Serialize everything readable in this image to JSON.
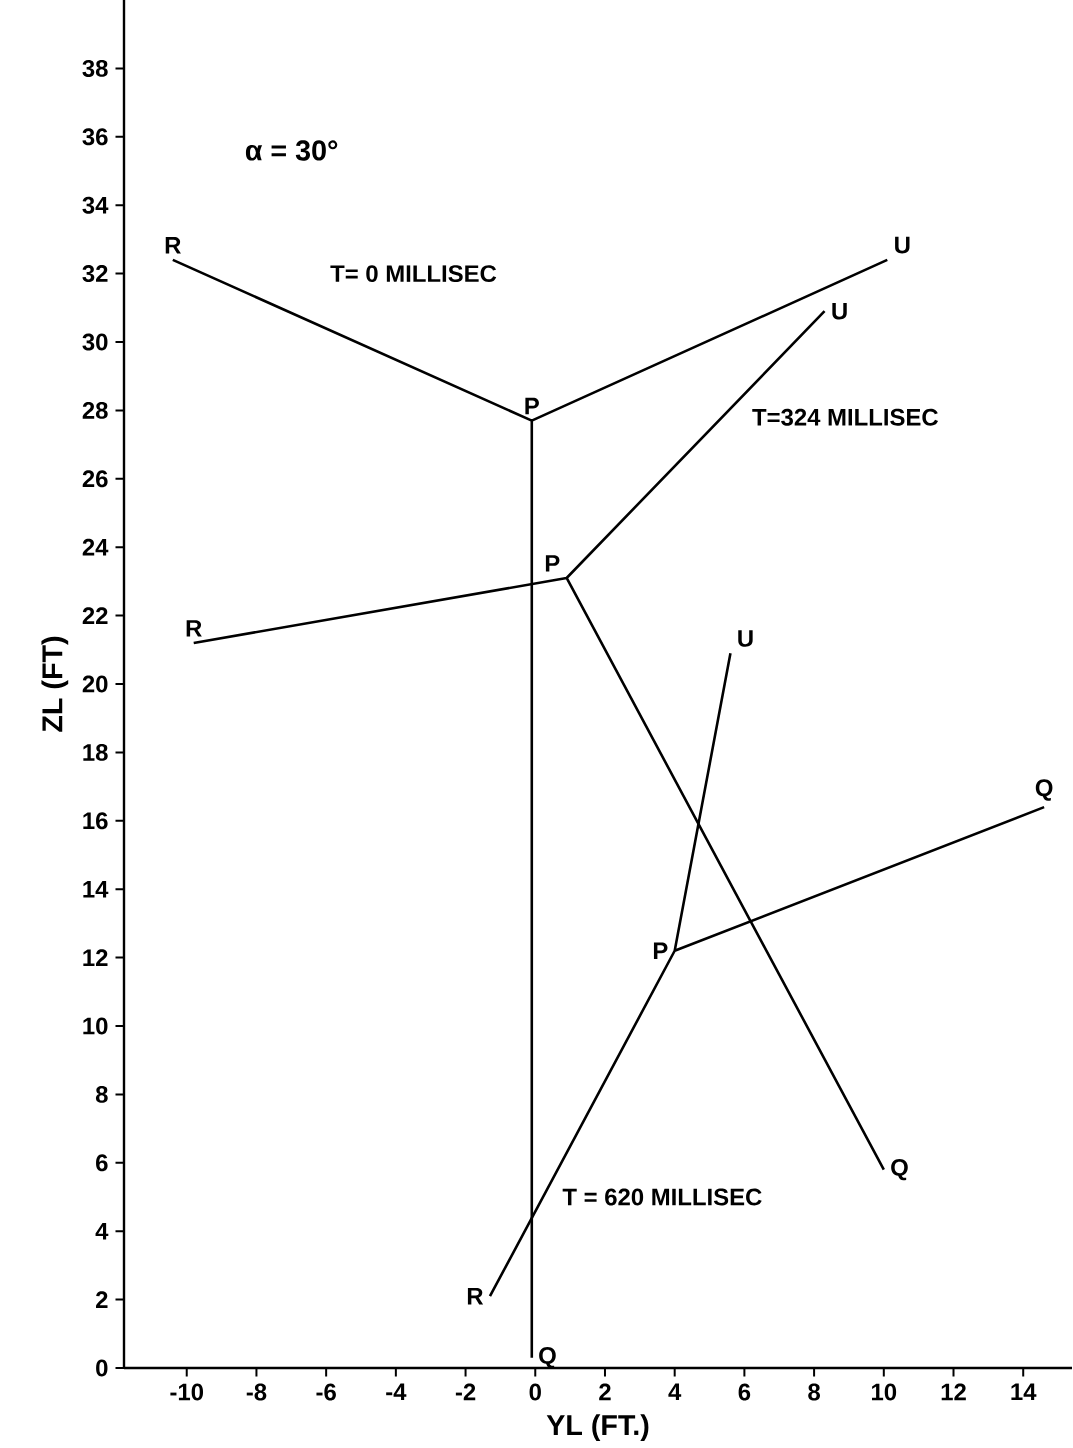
{
  "chart_data": {
    "type": "line",
    "xlabel": "YL (FT.)",
    "ylabel": "ZL (FT)",
    "xlim": [
      -11.8,
      15.4
    ],
    "ylim": [
      0,
      40
    ],
    "xticks": [
      -10,
      -8,
      -6,
      -4,
      -2,
      0,
      2,
      4,
      6,
      8,
      10,
      12,
      14
    ],
    "yticks": [
      0,
      2,
      4,
      6,
      8,
      10,
      12,
      14,
      16,
      18,
      20,
      22,
      24,
      26,
      28,
      30,
      32,
      34,
      36,
      38
    ],
    "grid": false,
    "marker": "none",
    "line_style": "solid",
    "series": [
      {
        "color": "#000000",
        "x": [
          -10.4,
          -0.1,
          10.1,
          null,
          -0.1,
          -0.1
        ],
        "values": [
          32.4,
          27.7,
          32.4,
          null,
          27.7,
          0.3
        ]
      },
      {
        "color": "#000000",
        "x": [
          -9.8,
          0.9,
          8.3,
          null,
          0.9,
          10.0
        ],
        "values": [
          21.2,
          23.1,
          30.9,
          null,
          23.1,
          5.8
        ]
      },
      {
        "color": "#000000",
        "x": [
          -1.3,
          4.0,
          5.6,
          null,
          4.0,
          14.6
        ],
        "values": [
          2.1,
          12.2,
          20.9,
          null,
          12.2,
          16.4
        ]
      }
    ],
    "annotations": [
      "α = 30°",
      "R",
      "P",
      "U",
      "Q",
      "T= 0 MILLISEC",
      "R",
      "P",
      "U",
      "Q",
      "T=324 MILLISEC",
      "R",
      "P",
      "U",
      "Q",
      "T = 620 MILLISEC"
    ]
  }
}
